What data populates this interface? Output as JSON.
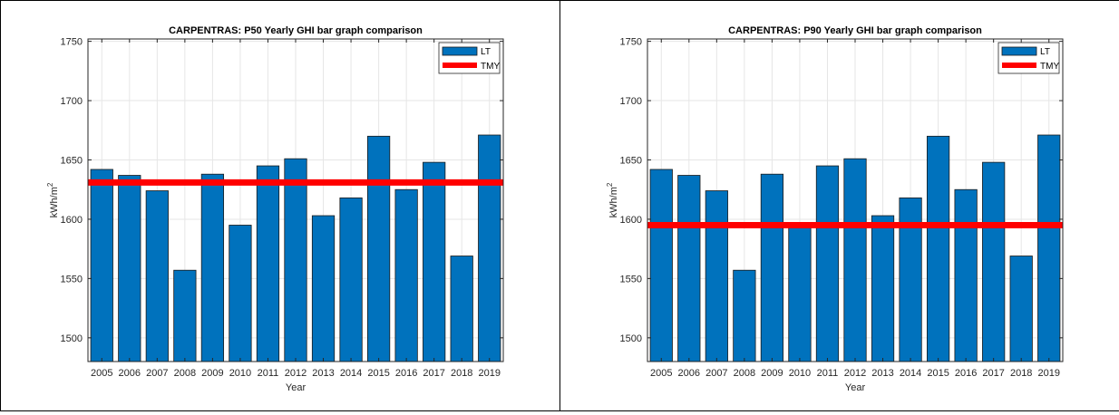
{
  "chart_data": [
    {
      "type": "bar",
      "title": "CARPENTRAS: P50 Yearly GHI bar graph comparison",
      "xlabel": "Year",
      "ylabel": "kWh/m",
      "ylabel_superscript": "2",
      "categories": [
        "2005",
        "2006",
        "2007",
        "2008",
        "2009",
        "2010",
        "2011",
        "2012",
        "2013",
        "2014",
        "2015",
        "2016",
        "2017",
        "2018",
        "2019"
      ],
      "series": [
        {
          "name": "LT",
          "type": "bar",
          "color": "#0072BD",
          "values": [
            1642,
            1637,
            1624,
            1557,
            1638,
            1595,
            1645,
            1651,
            1603,
            1618,
            1670,
            1625,
            1648,
            1569,
            1671
          ]
        },
        {
          "name": "TMY",
          "type": "line",
          "color": "#FF0000",
          "value": 1631
        }
      ],
      "ylim": [
        1480,
        1752
      ],
      "yticks": [
        1500,
        1550,
        1600,
        1650,
        1700,
        1750
      ],
      "grid": true,
      "legend": "top-right"
    },
    {
      "type": "bar",
      "title": "CARPENTRAS: P90 Yearly GHI bar graph comparison",
      "xlabel": "Year",
      "ylabel": "kWh/m",
      "ylabel_superscript": "2",
      "categories": [
        "2005",
        "2006",
        "2007",
        "2008",
        "2009",
        "2010",
        "2011",
        "2012",
        "2013",
        "2014",
        "2015",
        "2016",
        "2017",
        "2018",
        "2019"
      ],
      "series": [
        {
          "name": "LT",
          "type": "bar",
          "color": "#0072BD",
          "values": [
            1642,
            1637,
            1624,
            1557,
            1638,
            1595,
            1645,
            1651,
            1603,
            1618,
            1670,
            1625,
            1648,
            1569,
            1671
          ]
        },
        {
          "name": "TMY",
          "type": "line",
          "color": "#FF0000",
          "value": 1595
        }
      ],
      "ylim": [
        1480,
        1752
      ],
      "yticks": [
        1500,
        1550,
        1600,
        1650,
        1700,
        1750
      ],
      "grid": true,
      "legend": "top-right"
    }
  ]
}
